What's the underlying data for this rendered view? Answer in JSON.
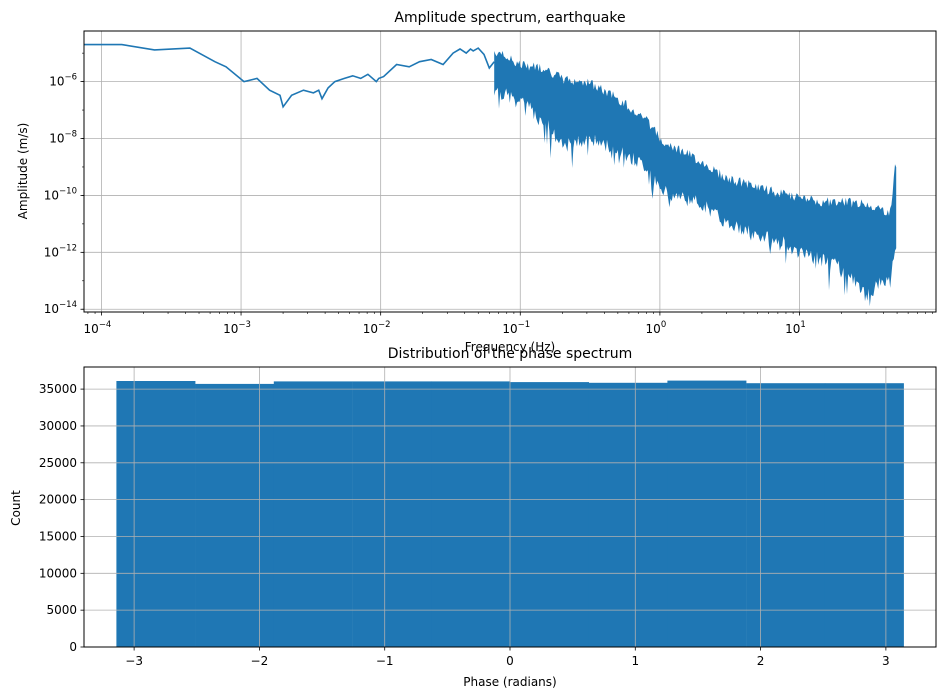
{
  "chart_data": [
    {
      "type": "line",
      "title": "Amplitude spectrum, earthquake",
      "xlabel": "Frequency (Hz)",
      "ylabel": "Amplitude (m/s)",
      "xscale": "log",
      "yscale": "log",
      "xlim": [
        7.5e-05,
        95
      ],
      "ylim": [
        8e-15,
        6e-05
      ],
      "grid": true,
      "color": "#1f77b4",
      "xticks": [
        {
          "value": 0.0001,
          "base": "10",
          "exp": "−4"
        },
        {
          "value": 0.001,
          "base": "10",
          "exp": "−3"
        },
        {
          "value": 0.01,
          "base": "10",
          "exp": "−2"
        },
        {
          "value": 0.1,
          "base": "10",
          "exp": "−1"
        },
        {
          "value": 1,
          "base": "10",
          "exp": "0"
        },
        {
          "value": 10,
          "base": "10",
          "exp": "1"
        }
      ],
      "yticks": [
        {
          "value": 1e-06,
          "base": "10",
          "exp": "−6"
        },
        {
          "value": 1e-08,
          "base": "10",
          "exp": "−8"
        },
        {
          "value": 1e-10,
          "base": "10",
          "exp": "−10"
        },
        {
          "value": 1e-12,
          "base": "10",
          "exp": "−12"
        },
        {
          "value": 1e-14,
          "base": "10",
          "exp": "−14"
        }
      ],
      "series": [
        {
          "x": [
            7.5e-05,
            0.00014,
            0.00024,
            0.00043,
            0.00065,
            0.00078,
            0.00105,
            0.0013,
            0.0016,
            0.0019,
            0.002,
            0.0023,
            0.0028,
            0.0033,
            0.0036,
            0.0038,
            0.0042,
            0.0047,
            0.0055,
            0.0063,
            0.0072,
            0.0081,
            0.0093,
            0.0097,
            0.0105,
            0.013,
            0.016,
            0.019,
            0.023,
            0.028,
            0.033,
            0.037,
            0.041,
            0.044,
            0.046,
            0.05,
            0.055,
            0.06,
            0.065
          ],
          "y": [
            2e-05,
            2e-05,
            1.3e-05,
            1.5e-05,
            5e-06,
            3.3e-06,
            1e-06,
            1.3e-06,
            5e-07,
            3.3e-07,
            1.3e-07,
            3.3e-07,
            5e-07,
            4e-07,
            5e-07,
            2.5e-07,
            6e-07,
            1e-06,
            1.3e-06,
            1.6e-06,
            1.3e-06,
            1.8e-06,
            1e-06,
            1.3e-06,
            1.5e-06,
            4e-06,
            3.3e-06,
            5e-06,
            6e-06,
            4e-06,
            1e-05,
            1.4e-05,
            1e-05,
            1.4e-05,
            1.2e-05,
            1.5e-05,
            9e-06,
            3e-06,
            5e-06
          ],
          "dense": {
            "x": [
              0.065,
              0.1,
              0.15,
              0.2,
              0.3,
              0.5,
              0.8,
              1,
              2,
              3,
              5,
              8,
              10,
              15,
              20,
              30,
              40,
              45,
              48,
              49,
              50
            ],
            "upper": [
              1.2e-05,
              4e-06,
              3e-06,
              1.2e-06,
              1e-06,
              2.5e-07,
              5e-08,
              1e-08,
              1.5e-09,
              4e-10,
              2e-10,
              1e-10,
              8e-11,
              6e-11,
              6e-11,
              5e-11,
              3e-11,
              2.5e-11,
              1e-09,
              1e-09,
              1e-09
            ],
            "lower": [
              5e-07,
              2e-07,
              4e-08,
              5e-09,
              1e-08,
              4e-09,
              1e-09,
              1.5e-10,
              5e-11,
              1e-11,
              4e-12,
              2e-12,
              1e-12,
              5e-13,
              3e-13,
              3e-14,
              1e-13,
              1e-13,
              1e-12,
              1e-12,
              1e-12
            ]
          }
        }
      ]
    },
    {
      "type": "bar",
      "title": "Distribution of the phase spectrum",
      "xlabel": "Phase (radians)",
      "ylabel": "Count",
      "xlim": [
        -3.4,
        3.4
      ],
      "ylim": [
        0,
        38000
      ],
      "grid": true,
      "color": "#1f77b4",
      "xticks": [
        -3,
        -2,
        -1,
        0,
        1,
        2,
        3
      ],
      "xtick_labels": [
        "−3",
        "−2",
        "−1",
        "0",
        "1",
        "2",
        "3"
      ],
      "yticks": [
        0,
        5000,
        10000,
        15000,
        20000,
        25000,
        30000,
        35000
      ],
      "ytick_labels": [
        "0",
        "5000",
        "10000",
        "15000",
        "20000",
        "25000",
        "30000",
        "35000"
      ],
      "bin_edges": [
        -3.14159,
        -2.51327,
        -1.88496,
        -1.25664,
        -0.62832,
        0,
        0.62832,
        1.25664,
        1.88496,
        2.51327,
        3.14159
      ],
      "values": [
        36100,
        35700,
        36050,
        36050,
        36050,
        35950,
        35850,
        36150,
        35800,
        35800
      ]
    }
  ]
}
